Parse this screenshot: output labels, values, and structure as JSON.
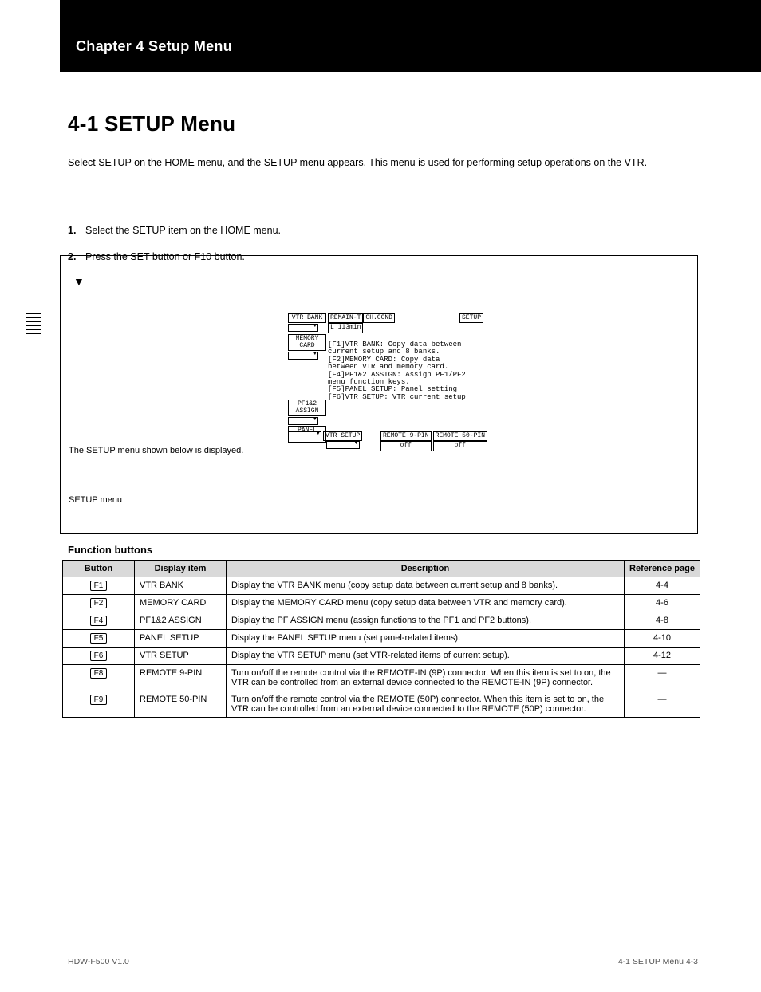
{
  "header": {
    "chapter_label": "Chapter 4  Setup Menu",
    "page_no_top": "4-3",
    "section_title": "4-1  SETUP Menu",
    "intro": "Select SETUP on the HOME menu, and the SETUP menu appears. This menu is used for performing setup operations on the VTR.",
    "step1_num": "1.",
    "step1_txt": "Select the SETUP item on the HOME menu.",
    "step2_num": "2.",
    "step2_txt": "Press the SET button or   F10    button.",
    "menu_caption": "The SETUP menu shown below is displayed.",
    "menu_caption2": "SETUP menu",
    "setup_arrow": "▼"
  },
  "screen": {
    "side_vtr_bank": "VTR BANK",
    "side_memory_card": "MEMORY CARD",
    "side_pf_assign": "PF1&2 ASSIGN",
    "side_panel_setup": "PANEL SETUP",
    "top_remain_label": "REMAIN-T",
    "top_remain_val": "L 113min",
    "top_chcond": "CH.COND",
    "top_setup": "SETUP",
    "body_l1": "[F1]VTR BANK: Copy data between",
    "body_l2": "   current setup and 8 banks.",
    "body_l3": "[F2]MEMORY CARD: Copy data",
    "body_l4": "   between VTR and memory card.",
    "body_l5": "[F4]PF1&2 ASSIGN: Assign PF1/PF2",
    "body_l6": "   menu function keys.",
    "body_l7": "[F5]PANEL SETUP: Panel setting",
    "body_l8": "[F6]VTR SETUP: VTR current setup",
    "bot_vtr_setup": "VTR SETUP",
    "bot_remote9": "REMOTE 9-PIN",
    "bot_remote50": "REMOTE 50-PIN",
    "bot_off": "off"
  },
  "note": "Function buttons",
  "table": {
    "h_button": "Button",
    "h_item": "Display item",
    "h_desc": "Description",
    "h_ref": "Reference page",
    "rows": [
      {
        "btn": "F1",
        "item": "VTR BANK",
        "desc": "Display the VTR BANK menu (copy setup data between current setup and 8 banks).",
        "ref": "4-4"
      },
      {
        "btn": "F2",
        "item": "MEMORY CARD",
        "desc": "Display the MEMORY CARD menu (copy setup data between VTR and memory card).",
        "ref": "4-6"
      },
      {
        "btn": "F4",
        "item": "PF1&2 ASSIGN",
        "desc": "Display the PF ASSIGN menu (assign functions to the PF1 and PF2 buttons).",
        "ref": "4-8"
      },
      {
        "btn": "F5",
        "item": "PANEL SETUP",
        "desc": "Display the PANEL SETUP menu (set panel-related items).",
        "ref": "4-10"
      },
      {
        "btn": "F6",
        "item": "VTR SETUP",
        "desc": "Display the VTR SETUP menu (set VTR-related items of current setup).",
        "ref": "4-12"
      },
      {
        "btn": "F8",
        "item": "REMOTE 9-PIN",
        "desc": "Turn on/off the remote control via the REMOTE-IN (9P) connector. When this item is set to on, the VTR can be controlled from an external device connected to the REMOTE-IN (9P) connector.",
        "ref": "—"
      },
      {
        "btn": "F9",
        "item": "REMOTE 50-PIN",
        "desc": "Turn on/off the remote control via the REMOTE (50P) connector. When this item is set to on, the VTR can be controlled from an external device connected to the REMOTE (50P) connector.",
        "ref": "—"
      }
    ]
  },
  "footer": {
    "left": "HDW-F500  V1.0",
    "right": "4-1  SETUP Menu   4-3"
  },
  "colors": {
    "black": "#000000",
    "white": "#ffffff",
    "table_header_bg": "#d9d9d9"
  }
}
